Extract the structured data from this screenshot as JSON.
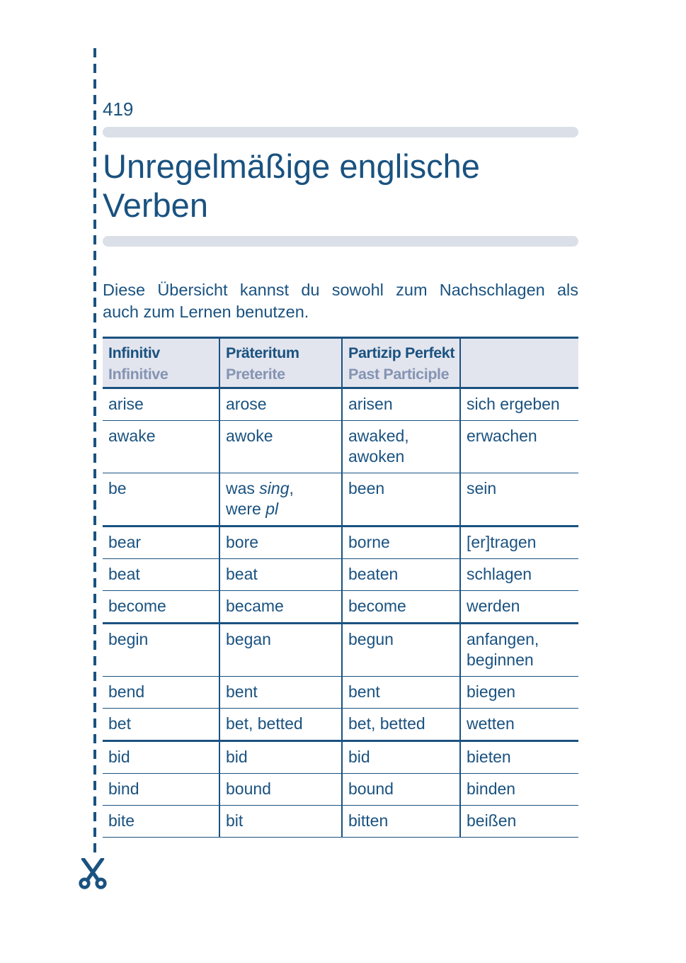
{
  "page": {
    "number": "419",
    "title": [
      "Unregelmäßige englische",
      "Verben"
    ],
    "intro": [
      "Diese Übersicht kannst du sowohl zum Nachschlagen als",
      "auch zum Lernen benutzen."
    ]
  },
  "colors": {
    "primary_blue": "#1a5280",
    "subheader_blue_gray": "#8494b3",
    "table_header_bg": "#e3e5ee",
    "rule_gray": "#dbdfe7"
  },
  "icons": {
    "scissors": "cut-here marker at end of dashed cut line"
  },
  "table": {
    "column_names": [
      "infinitive",
      "preterite",
      "past-participle",
      "german-meaning"
    ],
    "headers": [
      {
        "de": "Infinitiv",
        "en": "Infinitive"
      },
      {
        "de": "Präteritum",
        "en": "Preterite"
      },
      {
        "de": "Partizip Perfekt",
        "en": "Past Participle"
      },
      {
        "de": "",
        "en": ""
      }
    ],
    "rows": [
      {
        "group_end": false,
        "cells": [
          [
            {
              "t": "arise"
            }
          ],
          [
            {
              "t": "arose"
            }
          ],
          [
            {
              "t": "arisen"
            }
          ],
          [
            {
              "t": "sich ergeben"
            }
          ]
        ]
      },
      {
        "group_end": false,
        "cells": [
          [
            {
              "t": "awake"
            }
          ],
          [
            {
              "t": "awoke"
            }
          ],
          [
            {
              "t": "awaked,"
            },
            {
              "br": true
            },
            {
              "t": "awoken"
            }
          ],
          [
            {
              "t": "erwachen"
            }
          ]
        ]
      },
      {
        "group_end": true,
        "cells": [
          [
            {
              "t": "be"
            }
          ],
          [
            {
              "t": "was "
            },
            {
              "t": "sing",
              "i": true
            },
            {
              "t": ","
            },
            {
              "br": true
            },
            {
              "t": "were "
            },
            {
              "t": "pl",
              "i": true
            }
          ],
          [
            {
              "t": "been"
            }
          ],
          [
            {
              "t": "sein"
            }
          ]
        ]
      },
      {
        "group_end": false,
        "cells": [
          [
            {
              "t": "bear"
            }
          ],
          [
            {
              "t": "bore"
            }
          ],
          [
            {
              "t": "borne"
            }
          ],
          [
            {
              "t": "[er]tragen"
            }
          ]
        ]
      },
      {
        "group_end": false,
        "cells": [
          [
            {
              "t": "beat"
            }
          ],
          [
            {
              "t": "beat"
            }
          ],
          [
            {
              "t": "beaten"
            }
          ],
          [
            {
              "t": "schlagen"
            }
          ]
        ]
      },
      {
        "group_end": true,
        "cells": [
          [
            {
              "t": "become"
            }
          ],
          [
            {
              "t": "became"
            }
          ],
          [
            {
              "t": "become"
            }
          ],
          [
            {
              "t": "werden"
            }
          ]
        ]
      },
      {
        "group_end": false,
        "cells": [
          [
            {
              "t": "begin"
            }
          ],
          [
            {
              "t": "began"
            }
          ],
          [
            {
              "t": "begun"
            }
          ],
          [
            {
              "t": "anfangen,"
            },
            {
              "br": true
            },
            {
              "t": "beginnen"
            }
          ]
        ]
      },
      {
        "group_end": false,
        "cells": [
          [
            {
              "t": "bend"
            }
          ],
          [
            {
              "t": "bent"
            }
          ],
          [
            {
              "t": "bent"
            }
          ],
          [
            {
              "t": "biegen"
            }
          ]
        ]
      },
      {
        "group_end": true,
        "cells": [
          [
            {
              "t": "bet"
            }
          ],
          [
            {
              "t": "bet, betted"
            }
          ],
          [
            {
              "t": "bet, betted"
            }
          ],
          [
            {
              "t": "wetten"
            }
          ]
        ]
      },
      {
        "group_end": false,
        "cells": [
          [
            {
              "t": "bid"
            }
          ],
          [
            {
              "t": "bid"
            }
          ],
          [
            {
              "t": "bid"
            }
          ],
          [
            {
              "t": "bieten"
            }
          ]
        ]
      },
      {
        "group_end": false,
        "cells": [
          [
            {
              "t": "bind"
            }
          ],
          [
            {
              "t": "bound"
            }
          ],
          [
            {
              "t": "bound"
            }
          ],
          [
            {
              "t": "binden"
            }
          ]
        ]
      },
      {
        "group_end": false,
        "cells": [
          [
            {
              "t": "bite"
            }
          ],
          [
            {
              "t": "bit"
            }
          ],
          [
            {
              "t": "bitten"
            }
          ],
          [
            {
              "t": "beißen"
            }
          ]
        ]
      }
    ]
  }
}
